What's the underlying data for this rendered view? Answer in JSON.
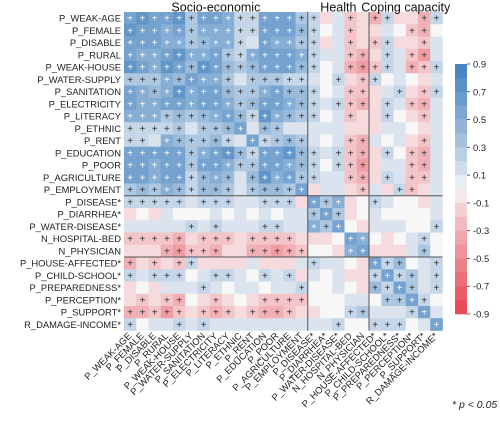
{
  "chart_data": {
    "type": "heatmap",
    "rows": [
      "P_WEAK-AGE",
      "P_FEMALE",
      "P_DISABLE",
      "P_RURAL",
      "P_WEAK-HOUSE",
      "P_WATER-SUPPLY",
      "P_SANITATION",
      "P_ELECTRICITY",
      "P_LITERACY",
      "P_ETHNIC",
      "P_RENT",
      "P_EDUCATION",
      "P_POOR",
      "P_AGRICULTURE",
      "P_EMPLOYMENT",
      "P_DISEASE*",
      "P_DIARRHEA*",
      "P_WATER-DISEASE*",
      "N_HOSPITAL-BED",
      "N_PHYSICIAN",
      "P_HOUSE-AFFECTED*",
      "P_CHILD-SCHOOL*",
      "P_PREPAREDNESS*",
      "P_PERCEPTION*",
      "P_SUPPORT*",
      "R_DAMAGE-INCOME*"
    ],
    "columns": [
      "P_WEAK-AGE",
      "P_FEMALE",
      "P_DISABLE",
      "P_RURAL",
      "P_WEAK-HOUSE",
      "P_WATER-SUPPLY",
      "P_SANITATION",
      "P_ELECTRICITY",
      "P_LITERACY",
      "P_ETHNIC",
      "P_RENT",
      "P_EDUCATION",
      "P_POOR",
      "P_AGRICULTURE",
      "P_EMPLOYMENT",
      "P_DISEASE*",
      "P_DIARRHEA*",
      "P_WATER-DISEASE*",
      "N_HOSPITAL-BED",
      "N_PHYSICIAN",
      "P_HOUSE-AFFECTED*",
      "P_CHILD-SCHOOL*",
      "P_PREPAREDNESS*",
      "P_PERCEPTION*",
      "P_SUPPORT*",
      "R_DAMAGE-INCOME*"
    ],
    "groups": [
      {
        "label": "Socio-economic",
        "start": 0,
        "end": 14
      },
      {
        "label": "Health",
        "start": 15,
        "end": 19
      },
      {
        "label": "Coping capacity",
        "start": 20,
        "end": 25
      }
    ],
    "matrix": [
      [
        0.6,
        0.7,
        0.6,
        0.6,
        0.7,
        0.3,
        0.6,
        0.6,
        0.5,
        0.2,
        0.2,
        0.6,
        0.6,
        0.6,
        0.3,
        0.2,
        -0.1,
        0.1,
        -0.2,
        -0.1,
        -0.3,
        0.2,
        -0.1,
        -0.1,
        -0.3,
        0.2
      ],
      [
        0.7,
        0.6,
        0.6,
        0.5,
        0.6,
        0.3,
        0.5,
        0.5,
        0.5,
        0.2,
        0.2,
        0.6,
        0.6,
        0.6,
        0.4,
        0.2,
        0.0,
        0.1,
        -0.2,
        -0.1,
        -0.1,
        0.1,
        0.0,
        -0.2,
        -0.3,
        0.0
      ],
      [
        0.6,
        0.6,
        0.6,
        0.5,
        0.5,
        0.3,
        0.4,
        0.5,
        0.5,
        0.2,
        0.1,
        0.6,
        0.5,
        0.5,
        0.3,
        0.2,
        -0.1,
        0.1,
        -0.2,
        -0.1,
        -0.2,
        0.2,
        -0.1,
        -0.1,
        -0.2,
        0.1
      ],
      [
        0.6,
        0.5,
        0.5,
        0.6,
        0.7,
        0.5,
        0.5,
        0.6,
        0.3,
        0.2,
        0.5,
        0.6,
        0.6,
        0.6,
        0.5,
        0.2,
        0.1,
        0.1,
        -0.2,
        -0.3,
        -0.1,
        0.2,
        0.1,
        -0.2,
        -0.4,
        0.1
      ],
      [
        0.7,
        0.6,
        0.5,
        0.7,
        0.6,
        0.4,
        0.7,
        0.6,
        0.4,
        0.3,
        0.4,
        0.6,
        0.6,
        0.6,
        0.4,
        0.2,
        0.0,
        0.1,
        -0.3,
        -0.4,
        -0.2,
        0.2,
        0.1,
        -0.3,
        -0.2,
        0.2
      ],
      [
        0.3,
        0.3,
        0.3,
        0.5,
        0.4,
        0.6,
        0.5,
        0.5,
        0.3,
        0.1,
        0.3,
        0.3,
        0.3,
        0.2,
        0.2,
        0.1,
        0.0,
        0.2,
        -0.1,
        -0.2,
        0.2,
        0.0,
        0.1,
        0.0,
        -0.1,
        0.1
      ],
      [
        0.6,
        0.5,
        0.4,
        0.5,
        0.7,
        0.5,
        0.6,
        0.6,
        0.4,
        0.3,
        0.3,
        0.5,
        0.6,
        0.4,
        0.4,
        0.2,
        0.0,
        0.1,
        -0.2,
        -0.2,
        -0.1,
        0.1,
        0.2,
        -0.1,
        -0.2,
        0.2
      ],
      [
        0.6,
        0.5,
        0.5,
        0.6,
        0.6,
        0.5,
        0.6,
        0.6,
        0.5,
        0.3,
        0.4,
        0.6,
        0.6,
        0.5,
        0.4,
        0.2,
        0.1,
        0.2,
        -0.2,
        -0.3,
        -0.1,
        0.2,
        0.1,
        -0.2,
        -0.3,
        0.1
      ],
      [
        0.5,
        0.5,
        0.5,
        0.3,
        0.4,
        0.3,
        0.4,
        0.5,
        0.6,
        0.4,
        0.2,
        0.7,
        0.5,
        0.4,
        0.3,
        0.2,
        0.0,
        0.1,
        -0.2,
        -0.1,
        -0.1,
        0.2,
        0.0,
        -0.1,
        -0.2,
        0.1
      ],
      [
        0.2,
        0.2,
        0.2,
        0.2,
        0.3,
        0.1,
        0.3,
        0.3,
        0.4,
        0.6,
        0.1,
        0.4,
        0.3,
        0.1,
        0.1,
        0.1,
        0.1,
        0.1,
        -0.1,
        -0.1,
        -0.1,
        0.1,
        0.1,
        0.0,
        -0.1,
        0.1
      ],
      [
        0.2,
        0.2,
        0.1,
        0.5,
        0.4,
        0.3,
        0.3,
        0.4,
        0.2,
        0.1,
        0.6,
        0.2,
        0.3,
        0.4,
        0.3,
        0.1,
        0.0,
        0.1,
        -0.2,
        -0.3,
        0.1,
        0.0,
        0.1,
        -0.1,
        -0.2,
        0.1
      ],
      [
        0.6,
        0.6,
        0.6,
        0.6,
        0.6,
        0.3,
        0.5,
        0.6,
        0.7,
        0.4,
        0.2,
        0.6,
        0.6,
        0.7,
        0.4,
        0.2,
        0.1,
        0.2,
        -0.2,
        -0.3,
        -0.1,
        0.2,
        0.0,
        -0.2,
        -0.3,
        0.1
      ],
      [
        0.6,
        0.6,
        0.5,
        0.6,
        0.6,
        0.3,
        0.6,
        0.6,
        0.5,
        0.3,
        0.3,
        0.6,
        0.6,
        0.5,
        0.4,
        0.2,
        0.0,
        0.2,
        -0.2,
        -0.4,
        -0.1,
        0.1,
        0.1,
        -0.2,
        -0.3,
        0.1
      ],
      [
        0.6,
        0.6,
        0.5,
        0.6,
        0.6,
        0.2,
        0.4,
        0.5,
        0.4,
        0.1,
        0.4,
        0.7,
        0.5,
        0.6,
        0.3,
        0.2,
        0.1,
        0.1,
        -0.2,
        -0.3,
        -0.1,
        0.2,
        0.1,
        -0.2,
        -0.2,
        0.1
      ],
      [
        0.3,
        0.4,
        0.3,
        0.5,
        0.4,
        0.2,
        0.4,
        0.4,
        0.3,
        0.1,
        0.3,
        0.4,
        0.4,
        0.3,
        0.6,
        -0.1,
        0.1,
        0.1,
        -0.1,
        -0.2,
        0.1,
        -0.1,
        0.2,
        -0.2,
        -0.1,
        0.1
      ],
      [
        0.2,
        0.2,
        0.2,
        0.2,
        0.2,
        0.1,
        0.2,
        0.2,
        0.2,
        0.1,
        0.1,
        0.2,
        0.2,
        0.2,
        -0.1,
        0.6,
        0.3,
        0.5,
        -0.1,
        0.0,
        0.2,
        0.1,
        0.0,
        0.0,
        -0.1,
        0.1
      ],
      [
        -0.1,
        0.0,
        -0.1,
        0.1,
        0.0,
        0.0,
        0.0,
        0.1,
        0.0,
        0.1,
        0.0,
        0.1,
        0.0,
        0.1,
        0.1,
        0.3,
        0.6,
        0.3,
        -0.1,
        0.0,
        0.1,
        0.0,
        0.0,
        0.0,
        0.0,
        0.1
      ],
      [
        0.1,
        0.1,
        0.1,
        0.1,
        0.1,
        0.2,
        0.1,
        0.2,
        0.1,
        0.1,
        0.1,
        0.2,
        0.2,
        0.1,
        0.1,
        0.5,
        0.3,
        0.6,
        0.0,
        -0.1,
        0.1,
        0.1,
        0.1,
        0.0,
        0.0,
        0.2
      ],
      [
        -0.2,
        -0.2,
        -0.2,
        -0.2,
        -0.3,
        -0.1,
        -0.2,
        -0.2,
        -0.2,
        -0.1,
        -0.2,
        -0.2,
        -0.2,
        -0.2,
        -0.1,
        -0.1,
        -0.1,
        0.0,
        0.6,
        0.5,
        0.0,
        -0.1,
        0.0,
        0.1,
        0.2,
        0.0
      ],
      [
        -0.1,
        -0.1,
        -0.1,
        -0.3,
        -0.4,
        -0.2,
        -0.2,
        -0.3,
        -0.1,
        -0.1,
        -0.3,
        -0.3,
        -0.4,
        -0.3,
        -0.2,
        0.0,
        0.0,
        -0.1,
        0.5,
        0.6,
        -0.1,
        -0.1,
        -0.1,
        0.1,
        0.3,
        0.0
      ],
      [
        -0.3,
        -0.1,
        -0.2,
        -0.1,
        -0.2,
        0.2,
        -0.1,
        -0.1,
        -0.1,
        -0.1,
        0.1,
        -0.1,
        -0.1,
        -0.1,
        0.1,
        0.2,
        0.1,
        0.1,
        0.0,
        -0.1,
        0.6,
        0.2,
        0.4,
        0.0,
        0.1,
        0.2
      ],
      [
        0.2,
        0.1,
        0.2,
        0.2,
        0.2,
        0.0,
        0.1,
        0.2,
        0.2,
        0.1,
        0.0,
        0.2,
        0.1,
        0.2,
        -0.1,
        0.1,
        0.0,
        0.1,
        -0.1,
        -0.1,
        0.2,
        0.6,
        0.2,
        0.3,
        0.1,
        0.2
      ],
      [
        -0.1,
        0.0,
        -0.1,
        0.1,
        0.1,
        0.1,
        0.2,
        0.1,
        0.0,
        0.1,
        0.1,
        0.0,
        0.1,
        0.1,
        0.2,
        0.0,
        0.0,
        0.1,
        0.0,
        -0.1,
        0.4,
        0.2,
        0.6,
        0.3,
        0.1,
        0.2
      ],
      [
        -0.1,
        -0.2,
        -0.1,
        -0.2,
        -0.3,
        0.0,
        -0.1,
        -0.2,
        -0.1,
        0.0,
        -0.1,
        -0.2,
        -0.2,
        -0.2,
        -0.2,
        0.0,
        0.0,
        0.0,
        0.1,
        0.1,
        0.0,
        0.3,
        0.3,
        0.6,
        0.2,
        0.0
      ],
      [
        -0.3,
        -0.3,
        -0.2,
        -0.4,
        -0.2,
        -0.1,
        -0.2,
        -0.3,
        -0.2,
        -0.1,
        -0.2,
        -0.3,
        -0.3,
        -0.2,
        -0.1,
        -0.1,
        0.0,
        0.0,
        0.2,
        0.3,
        0.1,
        0.1,
        0.1,
        0.2,
        0.6,
        0.1
      ],
      [
        0.2,
        0.0,
        0.1,
        0.1,
        0.2,
        0.1,
        0.2,
        0.1,
        0.1,
        0.1,
        0.1,
        0.1,
        0.1,
        0.1,
        0.1,
        0.1,
        0.1,
        0.2,
        0.0,
        0.0,
        0.2,
        0.2,
        0.2,
        0.0,
        0.1,
        0.6
      ]
    ],
    "significance_marker": "+",
    "significance_note": "* p < 0.05",
    "colorbar": {
      "min": -0.9,
      "max": 0.9,
      "ticks": [
        0.9,
        0.7,
        0.5,
        0.3,
        0.1,
        -0.1,
        -0.3,
        -0.5,
        -0.7,
        -0.9
      ],
      "tick_labels": [
        "0.9",
        "0.7",
        "0.5",
        "0.3",
        "0.1",
        "-0.1",
        "-0.3",
        "-0.5",
        "-0.7",
        "-0.9"
      ],
      "positive_color": "#3f7fbe",
      "negative_color": "#e8434f",
      "neutral_color": "#f7f7f7"
    },
    "title": "",
    "xlabel": "",
    "ylabel": ""
  }
}
